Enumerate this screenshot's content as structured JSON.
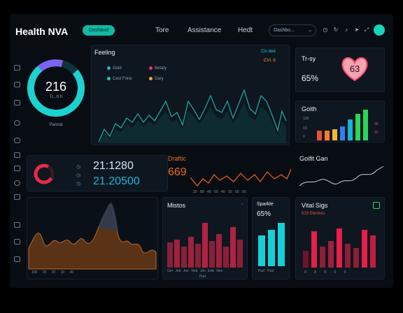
{
  "header": {
    "title": "Health NVA",
    "pill_label": "Dashbod",
    "nav": [
      "Tore",
      "Assistance",
      "Hedt"
    ],
    "select_value": "Dashbo...",
    "icons": [
      "clock-icon",
      "refresh-icon",
      "bell-icon",
      "send-icon",
      "expand-icon"
    ]
  },
  "ring": {
    "value": "216",
    "sub": "Tr...h h",
    "label": "Pannal",
    "color_main": "#1ad3d0",
    "color_accent": "#7b63f2"
  },
  "feeling": {
    "title": "Feeling",
    "dropdown": "Clo ded",
    "sub": "CVI. 6",
    "legend": [
      "Gold",
      "Betaty",
      "Cest Frine",
      "Dary"
    ],
    "legend_colors": [
      "#22b5d6",
      "#e8336a",
      "#22c99a",
      "#f0a82a"
    ]
  },
  "stats": {
    "line1": "21:1280",
    "line2": "21.20500",
    "colors": [
      "#e22b4a",
      "#22b5d6"
    ]
  },
  "energy": {
    "title": "Draftic",
    "value": "669",
    "color": "#f0601d"
  },
  "trust": {
    "title": "Tr-sy",
    "value": "65%",
    "heart_value": "63"
  },
  "goals": {
    "title": "Goith",
    "bar_colors": [
      "#e8503c",
      "#ff7b2a",
      "#f5b62f",
      "#2f7ff5",
      "#16b4d4",
      "#29d65a"
    ]
  },
  "trend": {
    "title": "Goifit Gan"
  },
  "area": {
    "labels": [
      "100",
      "20",
      "",
      "20",
      "",
      "10",
      "",
      "30"
    ]
  },
  "mistos": {
    "title": "Mistos",
    "labels": [
      "Gm",
      "Jeb",
      "Jee",
      "Neb",
      "Jek",
      "Eob",
      "Nex",
      "Jon"
    ],
    "sub": "Pud"
  },
  "sparkle": {
    "title": "Sparkle",
    "value": "65%",
    "labels": [
      "Pud",
      "Pud"
    ]
  },
  "vital": {
    "title": "Vital Sigs",
    "sub": "629 Electres",
    "labels": [
      "0",
      "8",
      "8",
      "0",
      "0",
      "0"
    ]
  }
}
